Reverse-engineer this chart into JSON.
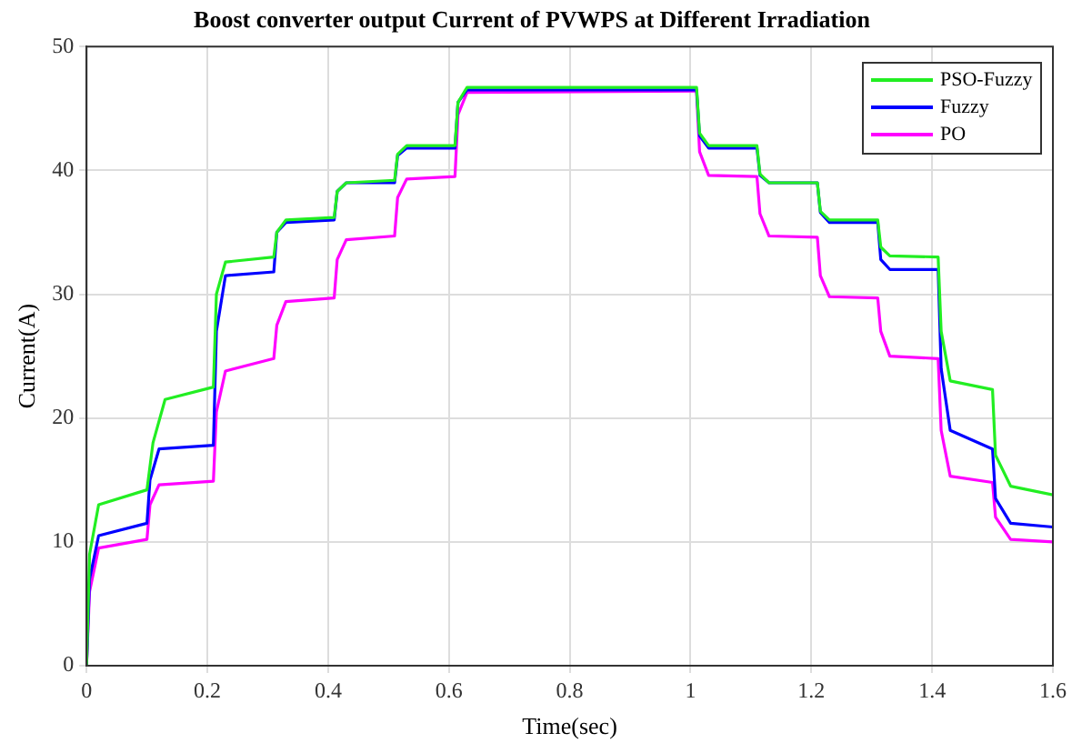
{
  "chart_data": {
    "type": "line",
    "title": "Boost converter output Current of PVWPS at Different Irradiation",
    "xlabel": "Time(sec)",
    "ylabel": "Current(A)",
    "xlim": [
      0,
      1.6
    ],
    "xticks": [
      0,
      0.2,
      0.4,
      0.6,
      0.8,
      1,
      1.2,
      1.4,
      1.6
    ],
    "ylim": [
      0,
      50
    ],
    "yticks": [
      0,
      10,
      20,
      30,
      40,
      50
    ],
    "grid": true,
    "legend": "top right",
    "marker": "none",
    "line_style": "solid",
    "series": [
      {
        "name": "PSO-Fuzzy",
        "color": "#22ee22",
        "x": [
          0,
          0.005,
          0.02,
          0.1,
          0.11,
          0.13,
          0.21,
          0.215,
          0.23,
          0.31,
          0.315,
          0.33,
          0.41,
          0.415,
          0.43,
          0.51,
          0.515,
          0.53,
          0.61,
          0.615,
          0.63,
          1.01,
          1.015,
          1.03,
          1.11,
          1.115,
          1.13,
          1.21,
          1.215,
          1.23,
          1.31,
          1.315,
          1.33,
          1.41,
          1.415,
          1.43,
          1.5,
          1.505,
          1.53,
          1.6
        ],
        "values": [
          0,
          9,
          13,
          14.2,
          18,
          21.5,
          22.5,
          30,
          32.6,
          33,
          35,
          36,
          36.2,
          38.3,
          39,
          39.2,
          41.3,
          42,
          42,
          45.5,
          46.7,
          46.7,
          43,
          42,
          42,
          39.7,
          39,
          39,
          36.7,
          36,
          36,
          33.8,
          33.1,
          33,
          27,
          23,
          22.3,
          17,
          14.5,
          13.8
        ]
      },
      {
        "name": "Fuzzy",
        "color": "#0000ff",
        "x": [
          0,
          0.005,
          0.02,
          0.1,
          0.105,
          0.12,
          0.21,
          0.215,
          0.23,
          0.31,
          0.315,
          0.33,
          0.41,
          0.415,
          0.43,
          0.51,
          0.515,
          0.53,
          0.61,
          0.615,
          0.63,
          1.01,
          1.015,
          1.03,
          1.11,
          1.115,
          1.13,
          1.21,
          1.215,
          1.23,
          1.31,
          1.315,
          1.33,
          1.41,
          1.415,
          1.43,
          1.5,
          1.505,
          1.53,
          1.6
        ],
        "values": [
          0,
          7,
          10.5,
          11.5,
          15,
          17.5,
          17.8,
          27,
          31.5,
          31.8,
          35,
          35.8,
          36,
          38.3,
          39,
          39,
          41.2,
          41.8,
          41.8,
          45.5,
          46.5,
          46.5,
          42.8,
          41.8,
          41.8,
          39.6,
          39,
          39,
          36.6,
          35.8,
          35.8,
          32.8,
          32,
          32,
          24,
          19,
          17.5,
          13.5,
          11.5,
          11.2
        ]
      },
      {
        "name": "PO",
        "color": "#ff00ff",
        "x": [
          0,
          0.005,
          0.02,
          0.1,
          0.105,
          0.12,
          0.21,
          0.215,
          0.23,
          0.31,
          0.315,
          0.33,
          0.41,
          0.415,
          0.43,
          0.51,
          0.515,
          0.53,
          0.61,
          0.615,
          0.63,
          1.01,
          1.015,
          1.03,
          1.11,
          1.115,
          1.13,
          1.21,
          1.215,
          1.23,
          1.31,
          1.315,
          1.33,
          1.41,
          1.415,
          1.43,
          1.5,
          1.505,
          1.53,
          1.6
        ],
        "values": [
          0,
          6,
          9.5,
          10.2,
          13,
          14.6,
          14.9,
          20.5,
          23.8,
          24.8,
          27.5,
          29.4,
          29.7,
          32.8,
          34.4,
          34.7,
          37.8,
          39.3,
          39.5,
          44.5,
          46.3,
          46.4,
          41.5,
          39.6,
          39.5,
          36.5,
          34.7,
          34.6,
          31.5,
          29.8,
          29.7,
          27,
          25,
          24.8,
          19,
          15.3,
          14.8,
          12,
          10.2,
          10
        ]
      }
    ]
  }
}
